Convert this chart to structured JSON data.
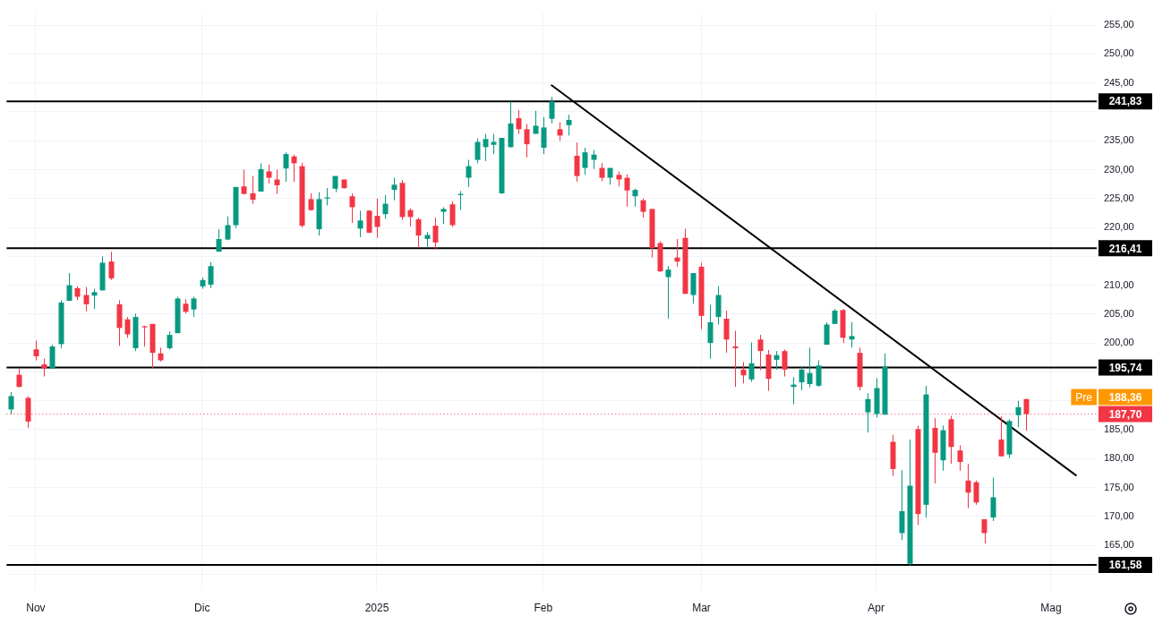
{
  "chart_data": {
    "type": "candlestick",
    "categories": [
      null,
      null,
      null,
      "Nov",
      null,
      null,
      null,
      null,
      null,
      null,
      null,
      null,
      null,
      null,
      null,
      null,
      null,
      null,
      null,
      null,
      null,
      null,
      null,
      "Dic",
      null,
      null,
      null,
      null,
      null,
      null,
      null,
      null,
      null,
      null,
      null,
      null,
      null,
      null,
      null,
      null,
      null,
      null,
      null,
      null,
      "2025",
      null,
      null,
      null,
      null,
      null,
      null,
      null,
      null,
      null,
      null,
      null,
      null,
      null,
      null,
      null,
      null,
      null,
      null,
      null,
      "Feb",
      null,
      null,
      null,
      null,
      null,
      null,
      null,
      null,
      null,
      null,
      null,
      null,
      null,
      null,
      null,
      null,
      null,
      null,
      "Mar",
      null,
      null,
      null,
      null,
      null,
      null,
      null,
      null,
      null,
      null,
      null,
      null,
      null,
      null,
      null,
      null,
      null,
      null,
      null,
      null,
      "Apr",
      null,
      null,
      null,
      null,
      null,
      null,
      null,
      null,
      null,
      null,
      null,
      null,
      null,
      null,
      null,
      null,
      null,
      null,
      null,
      null,
      "Mag",
      null,
      null,
      null,
      null,
      null
    ],
    "ohlc": [
      [
        188.5,
        191.5,
        187.7,
        190.8
      ],
      [
        194.5,
        195.5,
        192.3,
        192.4
      ],
      [
        190.5,
        190.8,
        185.3,
        186.4
      ],
      [
        198.9,
        200.4,
        197.0,
        197.7
      ],
      [
        196.3,
        197.3,
        194.2,
        195.6
      ],
      [
        195.6,
        199.7,
        195.6,
        199.4
      ],
      [
        199.8,
        207.4,
        199.1,
        207.0
      ],
      [
        207.3,
        212.1,
        207.3,
        210.0
      ],
      [
        209.5,
        209.8,
        207.4,
        208.0
      ],
      [
        208.3,
        209.7,
        205.5,
        206.7
      ],
      [
        208.2,
        209.4,
        205.9,
        208.8
      ],
      [
        209.1,
        215.0,
        209.1,
        213.9
      ],
      [
        214.1,
        215.8,
        210.9,
        211.2
      ],
      [
        206.7,
        207.4,
        199.5,
        202.6
      ],
      [
        204.1,
        204.5,
        200.9,
        201.5
      ],
      [
        199.1,
        205.1,
        198.6,
        204.5
      ],
      [
        202.9,
        203.0,
        199.4,
        202.7
      ],
      [
        203.3,
        203.3,
        195.6,
        198.3
      ],
      [
        198.2,
        199.2,
        196.8,
        197.0
      ],
      [
        199.1,
        202.0,
        198.9,
        201.4
      ],
      [
        201.7,
        208.0,
        201.7,
        207.7
      ],
      [
        206.8,
        207.6,
        205.1,
        205.4
      ],
      [
        205.8,
        208.0,
        204.5,
        207.7
      ],
      [
        209.8,
        211.3,
        209.4,
        210.9
      ],
      [
        210.1,
        214.0,
        209.5,
        213.3
      ],
      [
        215.8,
        219.7,
        215.8,
        218.0
      ],
      [
        217.9,
        221.9,
        217.8,
        220.4
      ],
      [
        220.4,
        227.0,
        219.9,
        227.0
      ],
      [
        227.1,
        230.0,
        225.7,
        225.8
      ],
      [
        225.9,
        228.9,
        224.1,
        224.8
      ],
      [
        226.2,
        231.1,
        226.2,
        230.1
      ],
      [
        229.7,
        230.9,
        227.6,
        228.6
      ],
      [
        228.3,
        230.0,
        225.8,
        227.3
      ],
      [
        230.2,
        233.0,
        227.9,
        232.7
      ],
      [
        232.3,
        232.6,
        227.9,
        231.1
      ],
      [
        230.6,
        231.2,
        220.0,
        220.3
      ],
      [
        224.9,
        225.9,
        222.9,
        223.0
      ],
      [
        219.7,
        226.1,
        218.6,
        224.9
      ],
      [
        225.0,
        226.8,
        223.8,
        225.2
      ],
      [
        226.7,
        228.9,
        226.1,
        228.9
      ],
      [
        228.3,
        228.3,
        226.7,
        226.8
      ],
      [
        225.4,
        225.9,
        220.8,
        223.5
      ],
      [
        219.8,
        222.9,
        218.3,
        221.2
      ],
      [
        222.9,
        223.0,
        219.0,
        219.1
      ],
      [
        222.0,
        225.0,
        218.2,
        220.1
      ],
      [
        222.3,
        225.6,
        221.5,
        224.1
      ],
      [
        226.5,
        228.6,
        224.7,
        227.4
      ],
      [
        227.7,
        228.2,
        221.3,
        221.8
      ],
      [
        223.0,
        223.3,
        220.2,
        221.8
      ],
      [
        221.4,
        221.7,
        216.5,
        218.6
      ],
      [
        218.0,
        219.2,
        216.5,
        218.7
      ],
      [
        220.3,
        221.7,
        216.2,
        217.4
      ],
      [
        222.7,
        223.5,
        220.6,
        223.2
      ],
      [
        224.0,
        224.5,
        220.1,
        220.4
      ],
      [
        225.6,
        226.3,
        223.0,
        225.8
      ],
      [
        228.6,
        231.7,
        227.0,
        230.6
      ],
      [
        231.7,
        235.4,
        231.1,
        234.8
      ],
      [
        233.9,
        236.2,
        231.5,
        235.3
      ],
      [
        234.3,
        236.2,
        232.7,
        234.8
      ],
      [
        225.9,
        235.5,
        225.8,
        235.5
      ],
      [
        233.9,
        241.7,
        233.8,
        238.0
      ],
      [
        238.9,
        240.3,
        236.2,
        237.0
      ],
      [
        237.0,
        237.9,
        232.1,
        234.4
      ],
      [
        236.2,
        240.2,
        236.2,
        237.6
      ],
      [
        233.8,
        239.1,
        232.7,
        237.3
      ],
      [
        238.8,
        242.6,
        238.0,
        241.8
      ],
      [
        237.0,
        238.2,
        235.0,
        235.9
      ],
      [
        237.7,
        239.5,
        235.9,
        238.6
      ],
      [
        232.4,
        234.7,
        227.9,
        228.9
      ],
      [
        230.3,
        233.8,
        229.1,
        233.0
      ],
      [
        231.7,
        233.4,
        230.1,
        232.6
      ],
      [
        230.3,
        231.1,
        228.0,
        228.6
      ],
      [
        228.6,
        230.3,
        227.4,
        230.3
      ],
      [
        229.1,
        229.7,
        227.1,
        228.3
      ],
      [
        228.6,
        229.2,
        223.6,
        226.4
      ],
      [
        225.4,
        226.7,
        223.6,
        226.5
      ],
      [
        224.7,
        225.0,
        221.7,
        222.7
      ],
      [
        223.2,
        223.2,
        214.8,
        216.4
      ],
      [
        217.3,
        217.6,
        212.3,
        212.4
      ],
      [
        211.4,
        213.3,
        204.2,
        212.7
      ],
      [
        214.8,
        218.0,
        213.2,
        214.1
      ],
      [
        218.2,
        219.8,
        208.5,
        208.5
      ],
      [
        208.3,
        212.1,
        206.8,
        212.1
      ],
      [
        213.2,
        213.9,
        202.4,
        204.7
      ],
      [
        200.0,
        206.6,
        197.3,
        203.6
      ],
      [
        204.5,
        209.8,
        203.2,
        208.3
      ],
      [
        204.2,
        205.6,
        198.3,
        200.6
      ],
      [
        199.4,
        202.1,
        192.4,
        199.1
      ],
      [
        195.4,
        196.7,
        193.0,
        194.4
      ],
      [
        193.7,
        200.1,
        193.3,
        196.5
      ],
      [
        200.6,
        201.4,
        195.3,
        198.6
      ],
      [
        198.0,
        198.8,
        191.7,
        193.8
      ],
      [
        197.1,
        198.6,
        195.4,
        197.9
      ],
      [
        198.6,
        198.9,
        194.2,
        195.4
      ],
      [
        192.4,
        194.1,
        189.4,
        192.8
      ],
      [
        193.2,
        195.9,
        191.8,
        195.4
      ],
      [
        192.9,
        199.2,
        192.3,
        194.8
      ],
      [
        192.6,
        197.0,
        192.4,
        196.1
      ],
      [
        199.7,
        203.6,
        199.7,
        203.2
      ],
      [
        203.3,
        205.9,
        203.3,
        205.6
      ],
      [
        205.7,
        205.9,
        200.0,
        200.9
      ],
      [
        200.6,
        203.6,
        199.2,
        201.2
      ],
      [
        198.3,
        199.2,
        191.8,
        192.4
      ],
      [
        188.0,
        191.3,
        184.5,
        190.3
      ],
      [
        187.7,
        193.9,
        187.1,
        192.2
      ],
      [
        187.6,
        198.2,
        187.6,
        195.9
      ],
      [
        182.9,
        184.1,
        177.0,
        178.2
      ],
      [
        167.1,
        178.0,
        165.9,
        170.9
      ],
      [
        161.8,
        183.3,
        161.5,
        175.3
      ],
      [
        185.1,
        185.7,
        168.5,
        170.4
      ],
      [
        172.0,
        192.6,
        169.8,
        191.1
      ],
      [
        185.3,
        187.0,
        175.7,
        181.0
      ],
      [
        179.7,
        185.7,
        177.9,
        184.9
      ],
      [
        186.8,
        187.4,
        179.1,
        182.0
      ],
      [
        181.4,
        182.3,
        177.9,
        179.4
      ],
      [
        176.2,
        179.1,
        171.4,
        174.1
      ],
      [
        175.9,
        176.2,
        172.0,
        172.4
      ],
      [
        169.5,
        169.5,
        165.3,
        167.1
      ],
      [
        169.8,
        176.7,
        169.2,
        173.3
      ],
      [
        183.3,
        187.3,
        180.3,
        180.4
      ],
      [
        180.7,
        186.8,
        180.1,
        186.5
      ],
      [
        187.5,
        190.0,
        185.4,
        188.9
      ],
      [
        190.3,
        190.3,
        184.8,
        187.7
      ],
      null,
      null,
      null,
      null,
      null,
      null,
      null,
      null
    ],
    "colors": [
      "#089981",
      "#f23645",
      "#f23645",
      "#f23645",
      "#f23645",
      "#089981",
      "#089981",
      "#089981",
      "#f23645",
      "#f23645",
      "#089981",
      "#089981",
      "#f23645",
      "#f23645",
      "#f23645",
      "#089981",
      "#f23645",
      "#f23645",
      "#f23645",
      "#089981",
      "#089981",
      "#f23645",
      "#089981",
      "#089981",
      "#089981",
      "#089981",
      "#089981",
      "#089981",
      "#f23645",
      "#f23645",
      "#089981",
      "#f23645",
      "#f23645",
      "#089981",
      "#f23645",
      "#f23645",
      "#f23645",
      "#089981",
      "#089981",
      "#089981",
      "#f23645",
      "#f23645",
      "#089981",
      "#f23645",
      "#f23645",
      "#089981",
      "#089981",
      "#f23645",
      "#f23645",
      "#f23645",
      "#089981",
      "#f23645",
      "#089981",
      "#f23645",
      "#089981",
      "#089981",
      "#089981",
      "#089981",
      "#089981",
      "#089981",
      "#089981",
      "#f23645",
      "#f23645",
      "#089981",
      "#089981",
      "#089981",
      "#f23645",
      "#089981",
      "#f23645",
      "#089981",
      "#089981",
      "#f23645",
      "#089981",
      "#f23645",
      "#f23645",
      "#089981",
      "#f23645",
      "#f23645",
      "#f23645",
      "#089981",
      "#f23645",
      "#f23645",
      "#089981",
      "#f23645",
      "#089981",
      "#089981",
      "#f23645",
      "#f23645",
      "#f23645",
      "#089981",
      "#f23645",
      "#f23645",
      "#089981",
      "#f23645",
      "#089981",
      "#089981",
      "#089981",
      "#089981",
      "#089981",
      "#089981",
      "#f23645",
      "#089981",
      "#f23645",
      "#089981",
      "#089981",
      "#089981",
      "#f23645",
      "#089981",
      "#089981",
      "#f23645",
      "#089981",
      "#f23645",
      "#089981",
      "#f23645",
      "#f23645",
      "#f23645",
      "#f23645",
      "#f23645",
      "#089981",
      "#f23645",
      "#089981",
      "#089981",
      "#f23645",
      null,
      null,
      null,
      null,
      null,
      null,
      null,
      null
    ],
    "series": [
      {
        "type": "line",
        "color": "#000000",
        "values": [
          null,
          null,
          null,
          null,
          null,
          null,
          null,
          null,
          null,
          null,
          null,
          null,
          null,
          null,
          null,
          null,
          null,
          null,
          null,
          null,
          null,
          null,
          null,
          null,
          null,
          null,
          null,
          null,
          null,
          null,
          null,
          null,
          null,
          null,
          null,
          null,
          null,
          null,
          null,
          null,
          null,
          null,
          null,
          null,
          null,
          null,
          null,
          null,
          null,
          null,
          null,
          null,
          null,
          null,
          null,
          null,
          null,
          null,
          null,
          null,
          null,
          null,
          null,
          null,
          null,
          244.6,
          null,
          null,
          null,
          null,
          null,
          null,
          null,
          null,
          null,
          null,
          null,
          null,
          null,
          null,
          null,
          null,
          null,
          null,
          null,
          null,
          null,
          null,
          null,
          null,
          null,
          null,
          null,
          null,
          null,
          null,
          null,
          null,
          null,
          null,
          null,
          null,
          null,
          null,
          null,
          null,
          null,
          null,
          null,
          null,
          null,
          null,
          null,
          null,
          null,
          null,
          null,
          null,
          null,
          null,
          null,
          null,
          null,
          null,
          null,
          null,
          null,
          null,
          177.1,
          null,
          null
        ]
      }
    ],
    "ylim": [
      157.1,
      257.1
    ],
    "yticks": [
      {
        "value": 160,
        "label": null
      },
      {
        "value": 165,
        "label": "165,00"
      },
      {
        "value": 170,
        "label": "170,00"
      },
      {
        "value": 175,
        "label": "175,00"
      },
      {
        "value": 180,
        "label": "180,00"
      },
      {
        "value": 185,
        "label": "185,00"
      },
      {
        "value": 190,
        "label": null
      },
      {
        "value": 195,
        "label": null
      },
      {
        "value": 200,
        "label": "200,00"
      },
      {
        "value": 205,
        "label": "205,00"
      },
      {
        "value": 210,
        "label": "210,00"
      },
      {
        "value": 215,
        "label": null
      },
      {
        "value": 220,
        "label": "220,00"
      },
      {
        "value": 225,
        "label": "225,00"
      },
      {
        "value": 230,
        "label": "230,00"
      },
      {
        "value": 235,
        "label": "235,00"
      },
      {
        "value": 240,
        "label": null
      },
      {
        "value": 245,
        "label": "245,00"
      },
      {
        "value": 250,
        "label": "250,00"
      },
      {
        "value": 255,
        "label": "255,00"
      }
    ],
    "ref_lines": [
      {
        "axis": "y",
        "value": 241.83,
        "label": "241,83",
        "color": "#000000",
        "line_style": "solid"
      },
      {
        "axis": "y",
        "value": 216.41,
        "label": "216,41",
        "color": "#000000",
        "line_style": "solid"
      },
      {
        "axis": "y",
        "value": 195.74,
        "label": "195,74",
        "color": "#000000",
        "line_style": "solid"
      },
      {
        "axis": "y",
        "value": 161.58,
        "label": "161,58",
        "color": "#000000",
        "line_style": "solid"
      },
      {
        "axis": "y",
        "value": 187.7,
        "label": "187,70",
        "color": "#f23645",
        "line_style": "dotted"
      }
    ],
    "annotations": [
      "Pre",
      "188,36"
    ],
    "grid": true
  }
}
